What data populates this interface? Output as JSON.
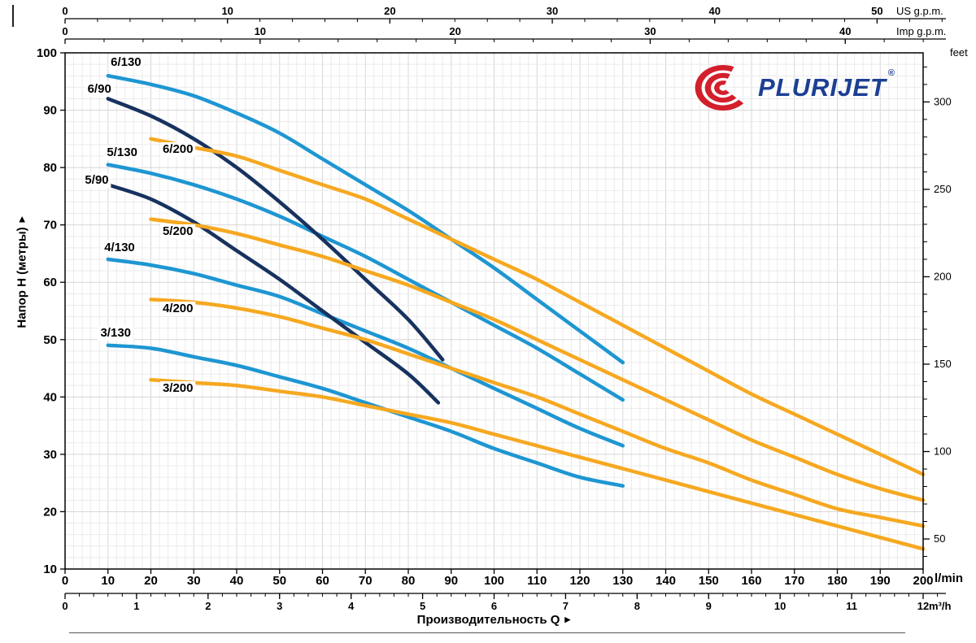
{
  "icons": {
    "right_arrow": "▶"
  },
  "logo": {
    "text": "PLURIJET",
    "registered": "®",
    "color_blue": "#1c3f94",
    "color_red": "#d31f2b"
  },
  "chart_data": {
    "type": "line",
    "title": "",
    "xlabel": "Производительность Q",
    "ylabel": "Напор H (метры)",
    "xlim": [
      0,
      200
    ],
    "ylim": [
      10,
      100
    ],
    "x_unit": "l/min",
    "grid": {
      "minor_step": 2,
      "major_step": 10
    },
    "colors": {
      "blue": "#1e96d2",
      "navy": "#17325f",
      "orange": "#f6a820",
      "grid_minor": "#ebebeb",
      "grid_major": "#d7d7d7",
      "axis": "#000000"
    },
    "axes": {
      "us_gpm": {
        "title": "US g.p.m.",
        "lmin_per_unit": 3.7854,
        "major_ticks": [
          0,
          10,
          20,
          30,
          40,
          50
        ],
        "minor_step": 2
      },
      "imp_gpm": {
        "title": "Imp g.p.m.",
        "lmin_per_unit": 4.5461,
        "major_ticks": [
          0,
          10,
          20,
          30,
          40
        ],
        "minor_step": 2
      },
      "feet": {
        "title": "feet",
        "m_per_unit": 0.3048,
        "major_ticks": [
          50,
          100,
          150,
          200,
          250,
          300
        ],
        "minor_step": 10
      },
      "l_min": {
        "title": "l/min",
        "major_step": 10
      },
      "m3_h": {
        "title": "m³/h",
        "lmin_per_unit": 16.6667,
        "major_ticks": [
          0,
          1,
          2,
          3,
          4,
          5,
          6,
          7,
          8,
          9,
          10,
          11,
          12
        ],
        "minor_per_unit": 5
      },
      "meters": {
        "major_step": 10
      }
    },
    "series": [
      {
        "name": "6/130",
        "color": "blue",
        "label_at": [
          14.2,
          98.3
        ],
        "points": [
          [
            10,
            96
          ],
          [
            20,
            94.5
          ],
          [
            30,
            92.5
          ],
          [
            40,
            89.5
          ],
          [
            50,
            86
          ],
          [
            60,
            81.5
          ],
          [
            70,
            77
          ],
          [
            80,
            72.5
          ],
          [
            90,
            67.5
          ],
          [
            100,
            62.5
          ],
          [
            110,
            57
          ],
          [
            120,
            51.5
          ],
          [
            130,
            46
          ]
        ]
      },
      {
        "name": "5/130",
        "color": "blue",
        "label_at": [
          13.3,
          82.6
        ],
        "points": [
          [
            10,
            80.5
          ],
          [
            20,
            79
          ],
          [
            30,
            77
          ],
          [
            40,
            74.5
          ],
          [
            50,
            71.5
          ],
          [
            60,
            68
          ],
          [
            70,
            64.5
          ],
          [
            80,
            60.5
          ],
          [
            90,
            56.5
          ],
          [
            100,
            52.5
          ],
          [
            110,
            48.5
          ],
          [
            120,
            44
          ],
          [
            130,
            39.5
          ]
        ]
      },
      {
        "name": "4/130",
        "color": "blue",
        "label_at": [
          12.7,
          66.0
        ],
        "points": [
          [
            10,
            64
          ],
          [
            20,
            63
          ],
          [
            30,
            61.5
          ],
          [
            40,
            59.5
          ],
          [
            50,
            57.5
          ],
          [
            60,
            54.5
          ],
          [
            70,
            51.5
          ],
          [
            80,
            48.5
          ],
          [
            90,
            45
          ],
          [
            100,
            41.5
          ],
          [
            110,
            38
          ],
          [
            120,
            34.5
          ],
          [
            130,
            31.5
          ]
        ]
      },
      {
        "name": "3/130",
        "color": "blue",
        "label_at": [
          11.8,
          51.1
        ],
        "points": [
          [
            10,
            49
          ],
          [
            20,
            48.5
          ],
          [
            30,
            47
          ],
          [
            40,
            45.5
          ],
          [
            50,
            43.5
          ],
          [
            60,
            41.5
          ],
          [
            70,
            39
          ],
          [
            80,
            36.5
          ],
          [
            90,
            34
          ],
          [
            100,
            31
          ],
          [
            110,
            28.5
          ],
          [
            120,
            26
          ],
          [
            130,
            24.5
          ]
        ]
      },
      {
        "name": "6/90",
        "color": "navy",
        "label_at": [
          8.0,
          93.6
        ],
        "points": [
          [
            10,
            92
          ],
          [
            20,
            89
          ],
          [
            30,
            85
          ],
          [
            40,
            80
          ],
          [
            50,
            74
          ],
          [
            60,
            67.5
          ],
          [
            70,
            60.5
          ],
          [
            80,
            53.5
          ],
          [
            88,
            46.5
          ]
        ]
      },
      {
        "name": "5/90",
        "color": "navy",
        "label_at": [
          7.4,
          77.7
        ],
        "points": [
          [
            10,
            77
          ],
          [
            20,
            74.5
          ],
          [
            30,
            70.5
          ],
          [
            40,
            65.5
          ],
          [
            50,
            60.5
          ],
          [
            60,
            55
          ],
          [
            70,
            49.5
          ],
          [
            80,
            44
          ],
          [
            87,
            39
          ]
        ]
      },
      {
        "name": "6/200",
        "color": "orange",
        "label_at": [
          26.3,
          83.1
        ],
        "points": [
          [
            20,
            85
          ],
          [
            30,
            83.5
          ],
          [
            40,
            82
          ],
          [
            50,
            79.5
          ],
          [
            60,
            77
          ],
          [
            70,
            74.5
          ],
          [
            80,
            71
          ],
          [
            90,
            67.5
          ],
          [
            100,
            64
          ],
          [
            110,
            60.5
          ],
          [
            120,
            56.5
          ],
          [
            130,
            52.5
          ],
          [
            140,
            48.5
          ],
          [
            150,
            44.5
          ],
          [
            160,
            40.5
          ],
          [
            170,
            37
          ],
          [
            180,
            33.5
          ],
          [
            190,
            30
          ],
          [
            200,
            26.5
          ]
        ]
      },
      {
        "name": "5/200",
        "color": "orange",
        "label_at": [
          26.3,
          68.8
        ],
        "points": [
          [
            20,
            71
          ],
          [
            30,
            70
          ],
          [
            40,
            68.5
          ],
          [
            50,
            66.5
          ],
          [
            60,
            64.5
          ],
          [
            70,
            62
          ],
          [
            80,
            59.5
          ],
          [
            90,
            56.5
          ],
          [
            100,
            53.5
          ],
          [
            110,
            50
          ],
          [
            120,
            46.5
          ],
          [
            130,
            43
          ],
          [
            140,
            39.5
          ],
          [
            150,
            36
          ],
          [
            160,
            32.5
          ],
          [
            170,
            29.5
          ],
          [
            180,
            26.5
          ],
          [
            190,
            24
          ],
          [
            200,
            22
          ]
        ]
      },
      {
        "name": "4/200",
        "color": "orange",
        "label_at": [
          26.3,
          55.4
        ],
        "points": [
          [
            20,
            57
          ],
          [
            30,
            56.5
          ],
          [
            40,
            55.5
          ],
          [
            50,
            54
          ],
          [
            60,
            52
          ],
          [
            70,
            50
          ],
          [
            80,
            47.5
          ],
          [
            90,
            45
          ],
          [
            100,
            42.5
          ],
          [
            110,
            40
          ],
          [
            120,
            37
          ],
          [
            130,
            34
          ],
          [
            140,
            31
          ],
          [
            150,
            28.5
          ],
          [
            160,
            25.5
          ],
          [
            170,
            23
          ],
          [
            180,
            20.5
          ],
          [
            190,
            19
          ],
          [
            200,
            17.5
          ]
        ]
      },
      {
        "name": "3/200",
        "color": "orange",
        "label_at": [
          26.3,
          41.5
        ],
        "points": [
          [
            20,
            43
          ],
          [
            30,
            42.5
          ],
          [
            40,
            42
          ],
          [
            50,
            41
          ],
          [
            60,
            40
          ],
          [
            70,
            38.5
          ],
          [
            80,
            37
          ],
          [
            90,
            35.5
          ],
          [
            100,
            33.5
          ],
          [
            110,
            31.5
          ],
          [
            120,
            29.5
          ],
          [
            130,
            27.5
          ],
          [
            140,
            25.5
          ],
          [
            150,
            23.5
          ],
          [
            160,
            21.5
          ],
          [
            170,
            19.5
          ],
          [
            180,
            17.5
          ],
          [
            190,
            15.5
          ],
          [
            200,
            13.5
          ]
        ]
      }
    ]
  }
}
